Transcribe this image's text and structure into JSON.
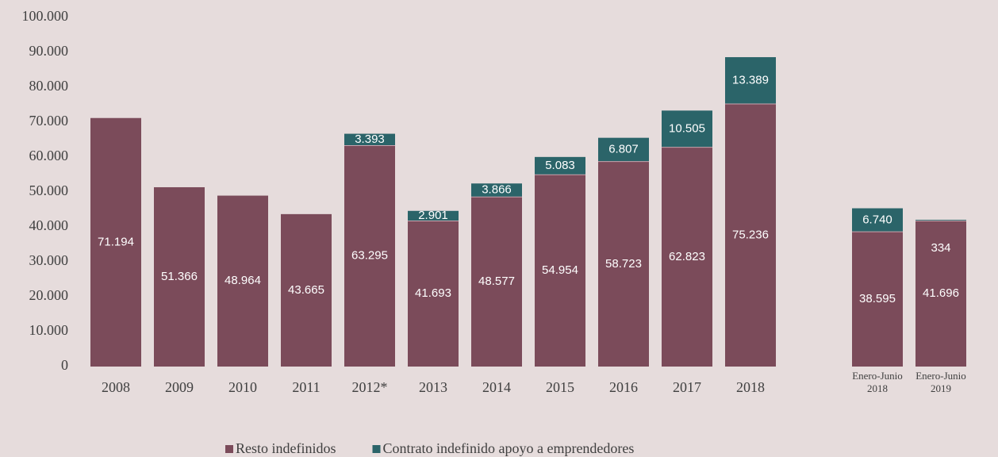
{
  "chart_data": {
    "type": "stacked_bar",
    "categories": [
      "2008",
      "2009",
      "2010",
      "2011",
      "2012*",
      "2013",
      "2014",
      "2015",
      "2016",
      "2017",
      "2018",
      null,
      "Enero-Junio\n2018",
      "Enero-Junio\n2019"
    ],
    "series": [
      {
        "name": "Resto indefinidos",
        "color": "#7b4b5a",
        "values": [
          71194,
          51366,
          48964,
          43665,
          63295,
          41693,
          48577,
          54954,
          58723,
          62823,
          75236,
          null,
          38595,
          41696
        ],
        "value_labels": [
          "71.194",
          "51.366",
          "48.964",
          "43.665",
          "63.295",
          "41.693",
          "48.577",
          "54.954",
          "58.723",
          "62.823",
          "75.236",
          null,
          "38.595",
          "41.696"
        ]
      },
      {
        "name": "Contrato indefinido apoyo a emprendedores",
        "color": "#2b6469",
        "values": [
          null,
          null,
          null,
          null,
          3393,
          2901,
          3866,
          5083,
          6807,
          10505,
          13389,
          null,
          6740,
          334
        ],
        "value_labels": [
          null,
          null,
          null,
          null,
          "3.393",
          "2.901",
          "3.866",
          "5.083",
          "6.807",
          "10.505",
          "13.389",
          null,
          "6.740",
          "334"
        ]
      }
    ],
    "ylim": [
      0,
      100000
    ],
    "yticks": [
      0,
      {
        "value": 10000,
        "label": "10.000"
      },
      {
        "value": 20000,
        "label": "20.000"
      },
      {
        "value": 30000,
        "label": "30.000"
      },
      {
        "value": 40000,
        "label": "40.000"
      },
      {
        "value": 50000,
        "label": "50.000"
      },
      {
        "value": 60000,
        "label": "60.000"
      },
      {
        "value": 70000,
        "label": "70.000"
      },
      {
        "value": 80000,
        "label": "80.000"
      },
      {
        "value": 90000,
        "label": "90.000"
      },
      {
        "value": 100000,
        "label": "100.000"
      }
    ],
    "legend": "bottom"
  }
}
